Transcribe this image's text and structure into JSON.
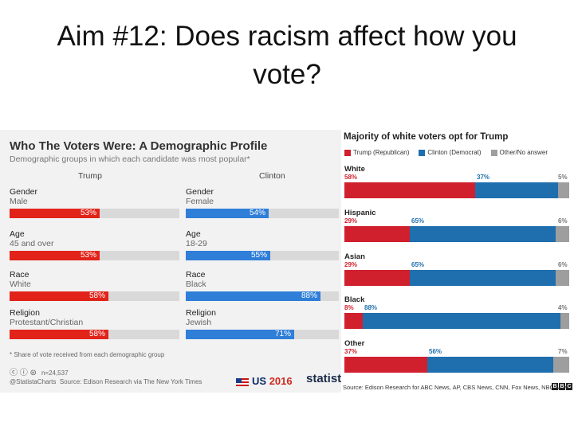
{
  "slide": {
    "title": "Aim #12: Does racism affect how you vote?"
  },
  "left_panel": {
    "title": "Who The Voters Were: A Demographic Profile",
    "subtitle": "Demographic groups in which each candidate was most popular*",
    "footnote": "* Share of vote received from each demographic group",
    "n": "n=24,537",
    "handle": "@StatistaCharts",
    "source": "Source: Edison Research via The New York Times",
    "us_logo": "US",
    "us_year": "2016",
    "statista_logo": "statista"
  },
  "right_panel": {
    "title": "Majority of white voters opt for Trump",
    "source": "Source: Edison Research for ABC News, AP, CBS News, CNN, Fox News, NBC News",
    "bbc": [
      "B",
      "B",
      "C"
    ]
  },
  "chart_data": [
    {
      "type": "bar",
      "title": "Who The Voters Were: A Demographic Profile",
      "subtitle": "Demographic groups in which each candidate was most popular*",
      "columns": [
        {
          "candidate": "Trump",
          "color": "#e2231a",
          "rows": [
            {
              "category": "Gender",
              "group": "Male",
              "value": 53,
              "label": "53%"
            },
            {
              "category": "Age",
              "group": "45 and over",
              "value": 53,
              "label": "53%"
            },
            {
              "category": "Race",
              "group": "White",
              "value": 58,
              "label": "58%"
            },
            {
              "category": "Religion",
              "group": "Protestant/Christian",
              "value": 58,
              "label": "58%"
            }
          ]
        },
        {
          "candidate": "Clinton",
          "color": "#2f7ed8",
          "rows": [
            {
              "category": "Gender",
              "group": "Female",
              "value": 54,
              "label": "54%"
            },
            {
              "category": "Age",
              "group": "18-29",
              "value": 55,
              "label": "55%"
            },
            {
              "category": "Race",
              "group": "Black",
              "value": 88,
              "label": "88%"
            },
            {
              "category": "Religion",
              "group": "Jewish",
              "value": 71,
              "label": "71%"
            }
          ]
        }
      ],
      "xlim": [
        0,
        100
      ]
    },
    {
      "type": "bar",
      "stacked": true,
      "title": "Majority of white voters opt for Trump",
      "legend": [
        {
          "name": "Trump (Republican)",
          "color": "#d0202e"
        },
        {
          "name": "Clinton (Democrat)",
          "color": "#1f6fae"
        },
        {
          "name": "Other/No answer",
          "color": "#9e9e9e"
        }
      ],
      "categories": [
        "White",
        "Hispanic",
        "Asian",
        "Black",
        "Other"
      ],
      "series": [
        {
          "name": "Trump (Republican)",
          "values": [
            58,
            29,
            29,
            8,
            37
          ],
          "labels": [
            "58%",
            "29%",
            "29%",
            "8%",
            "37%"
          ]
        },
        {
          "name": "Clinton (Democrat)",
          "values": [
            37,
            65,
            65,
            88,
            56
          ],
          "labels": [
            "37%",
            "65%",
            "65%",
            "88%",
            "56%"
          ]
        },
        {
          "name": "Other/No answer",
          "values": [
            5,
            6,
            6,
            4,
            7
          ],
          "labels": [
            "5%",
            "6%",
            "6%",
            "4%",
            "7%"
          ]
        }
      ],
      "xlim": [
        0,
        100
      ]
    }
  ]
}
